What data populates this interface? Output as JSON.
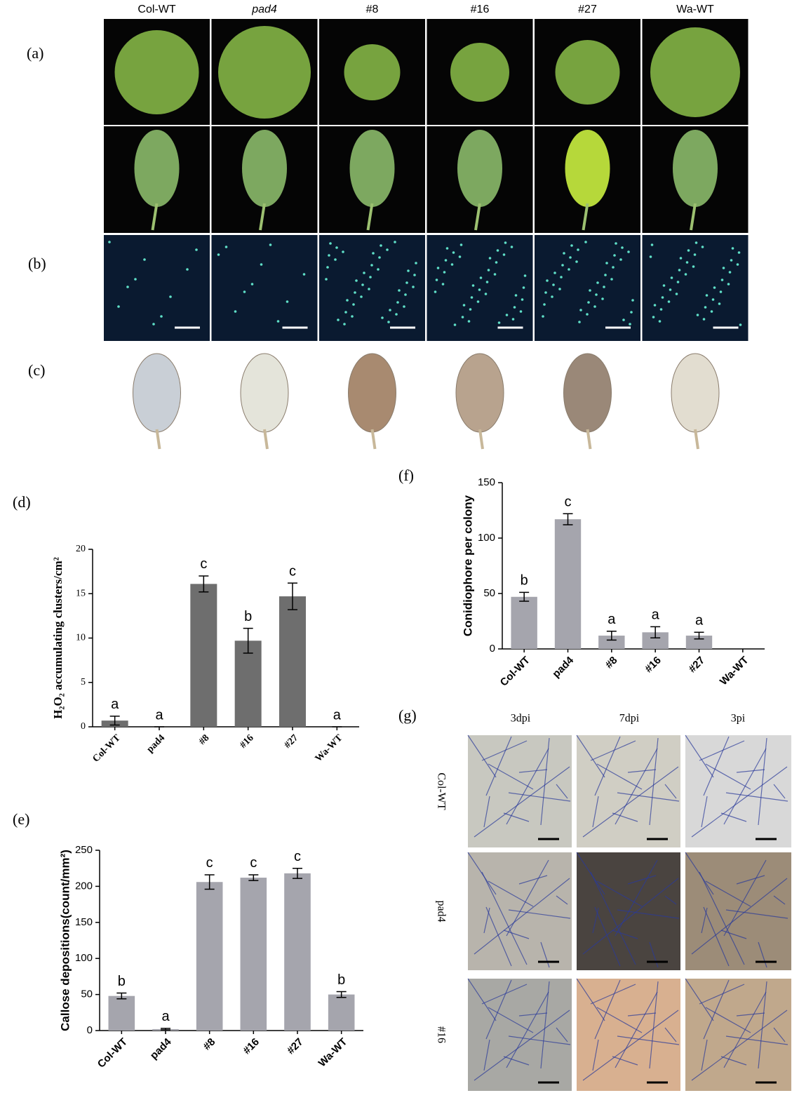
{
  "panel_labels": [
    "(a)",
    "(b)",
    "(c)",
    "(d)",
    "(e)",
    "(f)",
    "(g)"
  ],
  "column_headers": [
    "Col-WT",
    "pad4",
    "#8",
    "#16",
    "#27",
    "Wa-WT"
  ],
  "g_columns": [
    "3dpi",
    "7dpi",
    "3pi"
  ],
  "g_rows": [
    "Col-WT",
    "pad4",
    "#16"
  ],
  "chart_data": [
    {
      "type": "bar",
      "ylabel": "H₂O₂ accumulating clusters/cm²",
      "categories": [
        "Col-WT",
        "pad4",
        "#8",
        "#16",
        "#27",
        "Wa-WT"
      ],
      "values": [
        0.7,
        0,
        16.1,
        9.7,
        14.7,
        0
      ],
      "errors": [
        0.5,
        0,
        0.9,
        1.4,
        1.5,
        0
      ],
      "letters": [
        "a",
        "a",
        "c",
        "b",
        "c",
        "a"
      ],
      "color": "#6e6e6e",
      "ylim": [
        0,
        20
      ],
      "yticks": [
        0,
        5,
        10,
        15,
        20
      ]
    },
    {
      "type": "bar",
      "ylabel": "Callose depositions(count/mm²)",
      "categories": [
        "Col-WT",
        "pad4",
        "#8",
        "#16",
        "#27",
        "Wa-WT"
      ],
      "values": [
        48,
        2,
        206,
        212,
        218,
        50
      ],
      "errors": [
        4,
        1,
        10,
        4,
        7,
        4
      ],
      "letters": [
        "b",
        "a",
        "c",
        "c",
        "c",
        "b"
      ],
      "color": "#a5a5ad",
      "ylim": [
        0,
        250
      ],
      "yticks": [
        0,
        50,
        100,
        150,
        200,
        250
      ]
    },
    {
      "type": "bar",
      "ylabel": "Conidiophore per colony",
      "categories": [
        "Col-WT",
        "pad4",
        "#8",
        "#16",
        "#27",
        "Wa-WT"
      ],
      "values": [
        47,
        117,
        12,
        15,
        12,
        null
      ],
      "errors": [
        4,
        5,
        4,
        5,
        3,
        null
      ],
      "letters": [
        "b",
        "c",
        "a",
        "a",
        "a",
        null
      ],
      "color": "#a5a5ad",
      "ylim": [
        0,
        150
      ],
      "yticks": [
        0,
        50,
        100,
        150
      ]
    }
  ]
}
